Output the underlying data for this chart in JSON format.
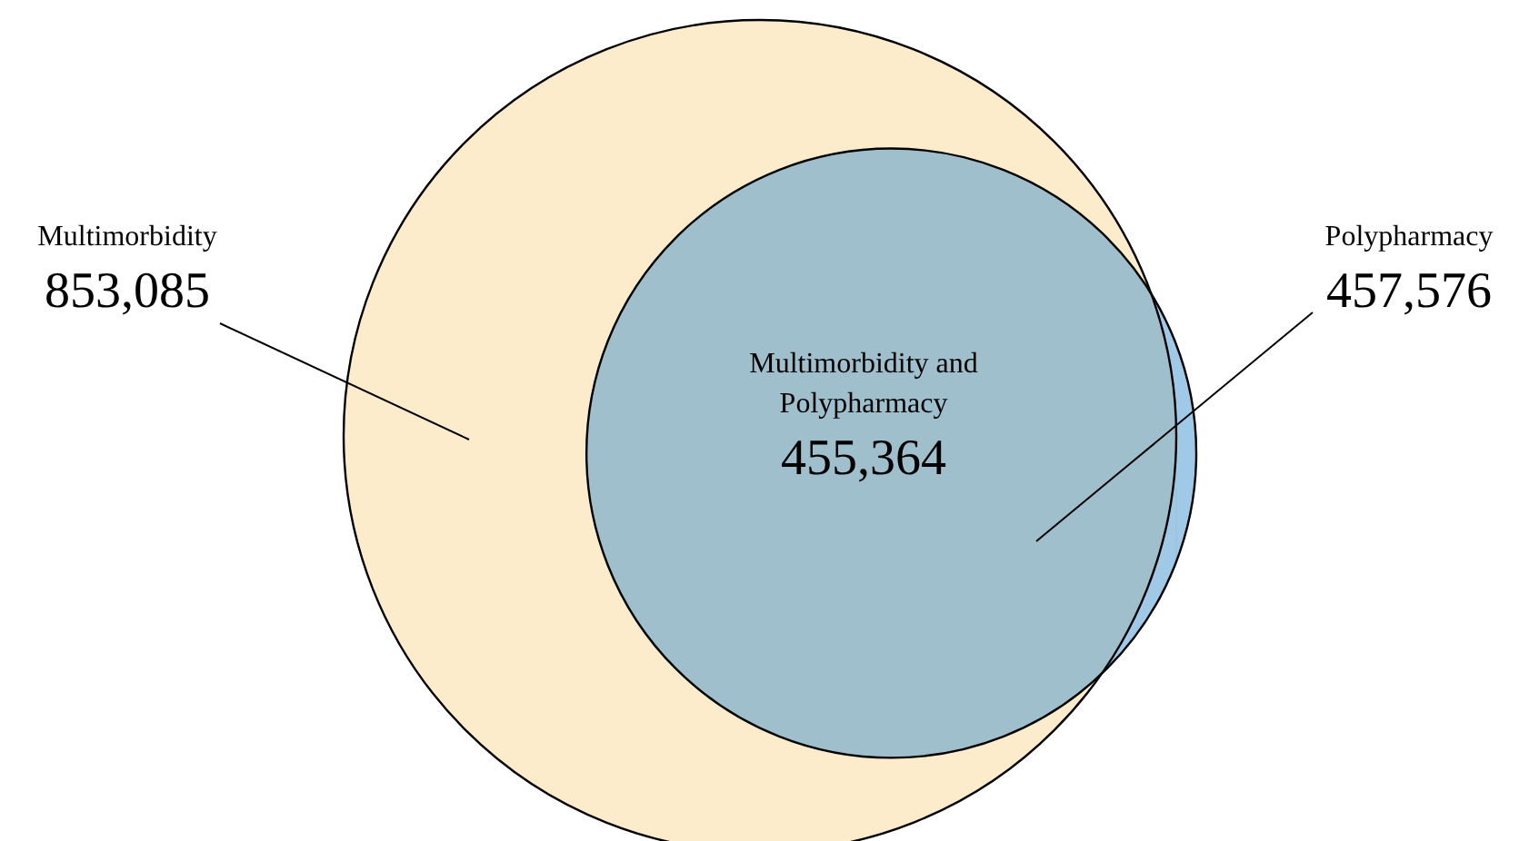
{
  "chart_data": {
    "type": "other",
    "categories": [
      "Multimorbidity",
      "Polypharmacy",
      "Multimorbidity and Polypharmacy"
    ],
    "values": [
      853085,
      457576,
      455364
    ],
    "value_labels": [
      "853,085",
      "457,576",
      "455,364"
    ],
    "colors": [
      "#fdeccb",
      "#9fc9e6",
      "#9fbfcc"
    ]
  }
}
